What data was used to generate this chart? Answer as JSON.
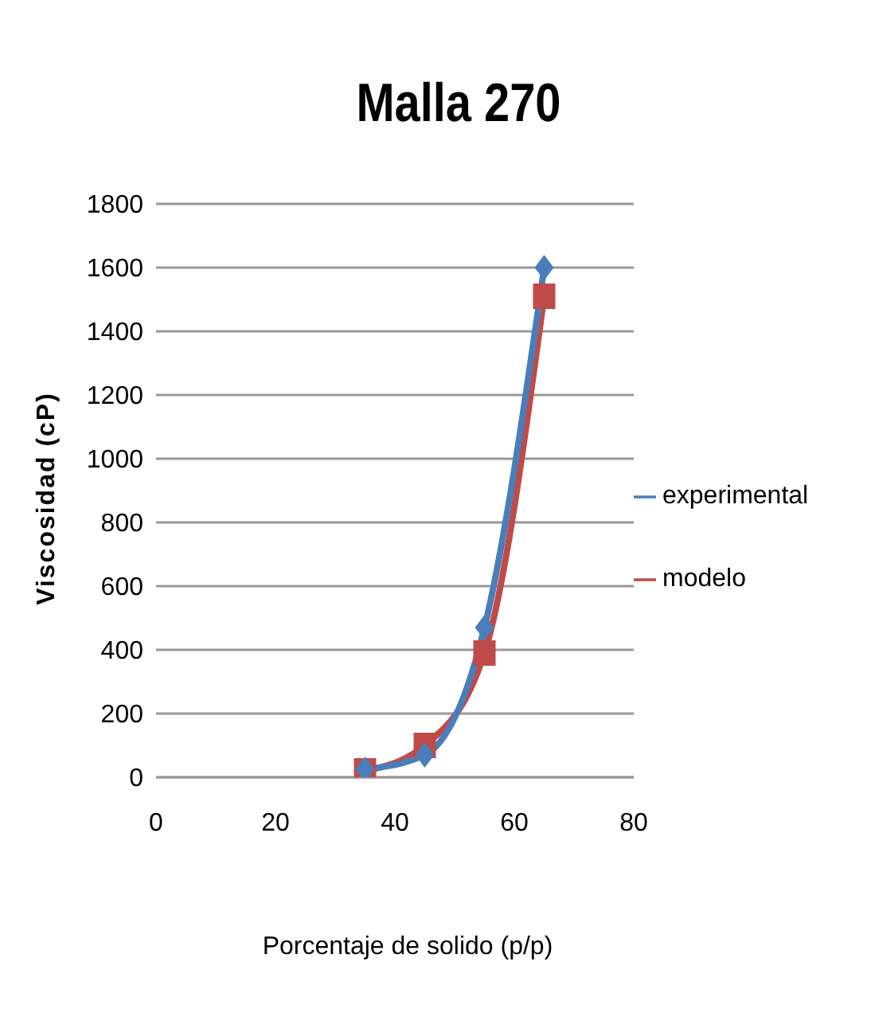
{
  "chart_data": {
    "type": "line",
    "title": "Malla 270",
    "xlabel": "Porcentaje de solido (p/p)",
    "ylabel": "Viscosidad (cP)",
    "x": [
      35,
      45,
      55,
      65
    ],
    "xlim": [
      0,
      80
    ],
    "xticks": [
      0,
      20,
      40,
      60,
      80
    ],
    "ylim": [
      0,
      1800
    ],
    "yticks": [
      0,
      200,
      400,
      600,
      800,
      1000,
      1200,
      1400,
      1600,
      1800
    ],
    "grid": "y",
    "legend": "right",
    "series": [
      {
        "name": "experimental",
        "color": "#4a7ebb",
        "values": [
          25,
          70,
          470,
          1600
        ],
        "marker": "diamond"
      },
      {
        "name": "modelo",
        "color": "#be4b48",
        "values": [
          20,
          100,
          390,
          1510
        ],
        "marker": "square"
      }
    ]
  }
}
